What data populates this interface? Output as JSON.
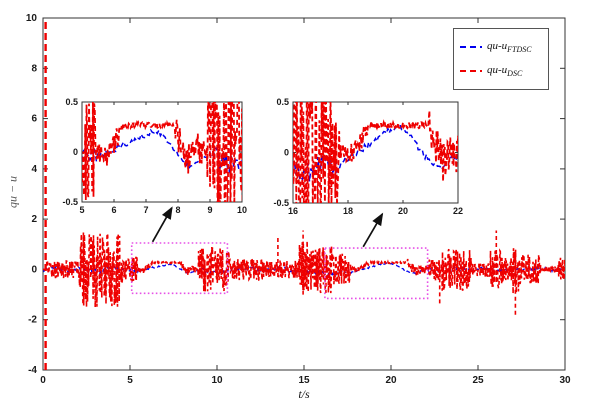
{
  "figure": {
    "background": "#ffffff"
  },
  "chart_data": {
    "type": "line",
    "title": "",
    "xlabel": "t/s",
    "ylabel": "qu − u",
    "xlim": [
      0,
      30
    ],
    "ylim": [
      -4,
      10
    ],
    "xticks": [
      0,
      5,
      10,
      15,
      20,
      25,
      30
    ],
    "yticks": [
      -4,
      -2,
      0,
      2,
      4,
      6,
      8,
      10
    ],
    "grid": false,
    "axis_color": "#333333",
    "legend": {
      "position": "top-right",
      "entries": [
        {
          "label": "qu-u",
          "sub": "FTDSC",
          "color": "#0000ee",
          "style": "dashed"
        },
        {
          "label": "qu-u",
          "sub": "DSC",
          "color": "#ee0000",
          "style": "dashed"
        }
      ]
    },
    "series": [
      {
        "name": "qu-u_FTDSC",
        "color": "#0000ee",
        "style": "dashed",
        "width": 1.3,
        "dt": 0.05,
        "seed": 777,
        "base_anchors": [
          [
            0,
            0
          ],
          [
            0.8,
            0.06
          ],
          [
            1.5,
            -0.06
          ],
          [
            2.3,
            0.05
          ],
          [
            3.2,
            -0.06
          ],
          [
            4.1,
            0.05
          ],
          [
            5,
            -0.02
          ],
          [
            5.6,
            -0.03
          ],
          [
            6.1,
            0.04
          ],
          [
            6.6,
            0.12
          ],
          [
            7.05,
            0.18
          ],
          [
            7.35,
            0.21
          ],
          [
            7.7,
            0.12
          ],
          [
            8.05,
            -0.04
          ],
          [
            8.35,
            -0.16
          ],
          [
            8.7,
            -0.05
          ],
          [
            9,
            -0.03
          ],
          [
            9.6,
            -0.12
          ],
          [
            10.1,
            -0.16
          ],
          [
            10.6,
            -0.05
          ],
          [
            11.2,
            0.02
          ],
          [
            12,
            0.06
          ],
          [
            12.8,
            -0.05
          ],
          [
            13.6,
            0.05
          ],
          [
            14.4,
            -0.04
          ],
          [
            15.2,
            -0.08
          ],
          [
            16,
            -0.16
          ],
          [
            16.5,
            -0.21
          ],
          [
            17,
            -0.1
          ],
          [
            17.5,
            -0.16
          ],
          [
            18,
            -0.06
          ],
          [
            18.6,
            0.05
          ],
          [
            19.1,
            0.14
          ],
          [
            19.55,
            0.23
          ],
          [
            19.85,
            0.25
          ],
          [
            20.3,
            0.14
          ],
          [
            20.7,
            0
          ],
          [
            21.1,
            -0.13
          ],
          [
            21.4,
            -0.17
          ],
          [
            21.8,
            -0.05
          ],
          [
            22.2,
            0.02
          ],
          [
            23,
            -0.05
          ],
          [
            23.8,
            0.05
          ],
          [
            24.6,
            -0.05
          ],
          [
            25.4,
            0.04
          ],
          [
            26.2,
            -0.05
          ],
          [
            27,
            0.04
          ],
          [
            27.8,
            -0.04
          ],
          [
            28.6,
            0.04
          ],
          [
            29.3,
            -0.03
          ],
          [
            30,
            0
          ]
        ],
        "noise_segments": [
          [
            0,
            2.1,
            0.08
          ],
          [
            2.1,
            4.4,
            0.13
          ],
          [
            4.4,
            5.5,
            0.08
          ],
          [
            5.5,
            9,
            0.03
          ],
          [
            9,
            10.8,
            0.1
          ],
          [
            10.8,
            14.7,
            0.07
          ],
          [
            14.7,
            17.7,
            0.1
          ],
          [
            17.7,
            21.8,
            0.03
          ],
          [
            21.8,
            24.6,
            0.1
          ],
          [
            24.6,
            30,
            0.07
          ]
        ],
        "spikes": []
      },
      {
        "name": "qu-u_DSC",
        "color": "#ee0000",
        "style": "dashed",
        "width": 1.6,
        "dt": 0.02,
        "seed": 12345,
        "base_anchors": [
          [
            0,
            0
          ],
          [
            5.5,
            0
          ],
          [
            5.8,
            -0.06
          ],
          [
            6.05,
            0.12
          ],
          [
            6.3,
            0.27
          ],
          [
            7.85,
            0.27
          ],
          [
            8.05,
            0.1
          ],
          [
            8.3,
            -0.08
          ],
          [
            8.55,
            0.06
          ],
          [
            8.8,
            0
          ],
          [
            18.2,
            0
          ],
          [
            18.5,
            0.12
          ],
          [
            18.75,
            0.27
          ],
          [
            20.9,
            0.27
          ],
          [
            21.15,
            0.08
          ],
          [
            21.45,
            -0.1
          ],
          [
            21.7,
            0
          ],
          [
            30,
            0
          ]
        ],
        "noise_segments": [
          [
            0.2,
            2.1,
            0.35
          ],
          [
            2.1,
            4.4,
            1.5
          ],
          [
            4.4,
            5.4,
            0.55
          ],
          [
            5.4,
            6.2,
            0.1
          ],
          [
            6.2,
            7.9,
            0.03
          ],
          [
            7.9,
            8.9,
            0.15
          ],
          [
            8.9,
            10.8,
            0.9
          ],
          [
            10.8,
            12.6,
            0.45
          ],
          [
            12.6,
            14.7,
            0.35
          ],
          [
            14.7,
            15.2,
            1.2
          ],
          [
            15.2,
            16.6,
            0.95
          ],
          [
            16.6,
            17.7,
            0.65
          ],
          [
            17.7,
            18.7,
            0.1
          ],
          [
            18.75,
            20.9,
            0.03
          ],
          [
            20.9,
            22.1,
            0.2
          ],
          [
            22.1,
            22.9,
            0.45
          ],
          [
            22.9,
            24.6,
            0.85
          ],
          [
            24.6,
            25.7,
            0.3
          ],
          [
            25.7,
            26.4,
            0.8
          ],
          [
            26.4,
            27,
            0.5
          ],
          [
            27,
            27.4,
            1
          ],
          [
            27.4,
            28.6,
            0.6
          ],
          [
            28.6,
            29.6,
            0.12
          ],
          [
            29.6,
            30,
            0.5
          ]
        ],
        "spikes": [
          [
            0.15,
            -4,
            10
          ],
          [
            13.5,
            -0.3,
            1.25
          ],
          [
            14.95,
            -1,
            1.55
          ],
          [
            22.8,
            -1.35,
            0.3
          ],
          [
            26.05,
            -0.5,
            1.55
          ],
          [
            27.15,
            -1.8,
            0.4
          ]
        ]
      }
    ],
    "insets": [
      {
        "xlim": [
          5,
          10
        ],
        "ylim": [
          -0.5,
          0.5
        ],
        "xticks": [
          5,
          6,
          7,
          8,
          9,
          10
        ],
        "yticks": [
          -0.5,
          0,
          0.5
        ]
      },
      {
        "xlim": [
          16,
          22
        ],
        "ylim": [
          -0.5,
          0.5
        ],
        "xticks": [
          16,
          18,
          20,
          22
        ],
        "yticks": [
          -0.5,
          0,
          0.5
        ]
      }
    ],
    "zoom_boxes": [
      {
        "x0": 5.1,
        "x1": 10.6,
        "y0": -0.95,
        "y1": 1.05,
        "color": "#e750e7"
      },
      {
        "x0": 16.2,
        "x1": 22.1,
        "y0": -1.15,
        "y1": 0.85,
        "color": "#e750e7"
      }
    ],
    "arrows": [
      {
        "x0": 6.3,
        "y0": 1.1,
        "x1": 7.4,
        "y1": 2.45
      },
      {
        "x0": 18.4,
        "y0": 0.9,
        "x1": 19.5,
        "y1": 2.2
      }
    ]
  }
}
